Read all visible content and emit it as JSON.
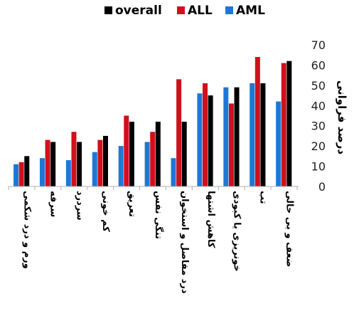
{
  "chart_data": {
    "type": "bar",
    "title": "",
    "xlabel": "",
    "ylabel": "درصد فراوانی",
    "ylim": [
      0,
      70
    ],
    "yticks": [
      0,
      10,
      20,
      30,
      40,
      50,
      60,
      70
    ],
    "grid": false,
    "y_axis_position": "right",
    "legend_position": "top",
    "categories": [
      "ورم و درد شکمی",
      "سرفه",
      "سردرد",
      "کم خونی",
      "تعریق",
      "تنگی نفس",
      "درد مفاصل و استخوان",
      "کاهش اشتها",
      "خونریزی یا کبودی",
      "تب",
      "ضعف و بی حالی"
    ],
    "series": [
      {
        "name": "AML",
        "color": "#1f77d4",
        "values": [
          11,
          14,
          13,
          17,
          20,
          22,
          14,
          46,
          49,
          51,
          42
        ]
      },
      {
        "name": "ALL",
        "color": "#d0101c",
        "values": [
          12,
          23,
          27,
          23,
          35,
          27,
          53,
          51,
          41,
          64,
          61
        ]
      },
      {
        "name": "overall",
        "color": "#000000",
        "values": [
          15,
          22,
          22,
          25,
          32,
          32,
          32,
          45,
          49,
          51,
          62
        ]
      }
    ],
    "legend_order": [
      "overall",
      "ALL",
      "AML"
    ]
  }
}
